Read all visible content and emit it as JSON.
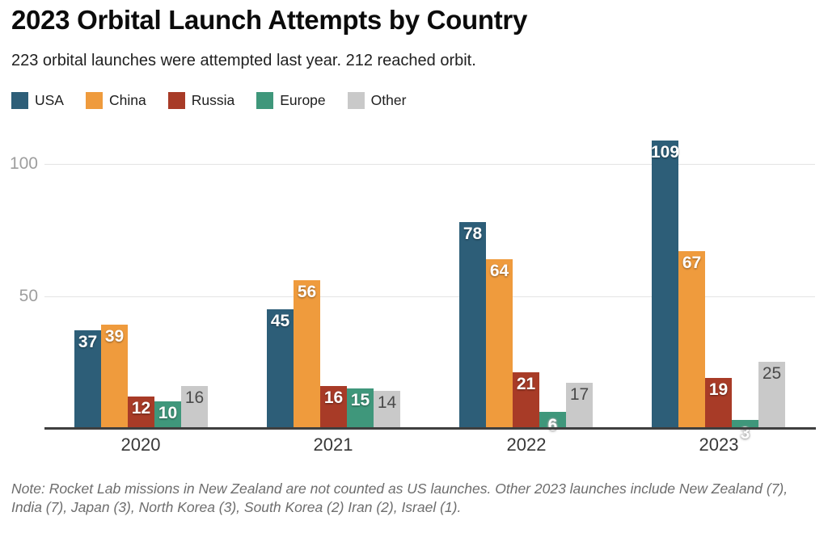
{
  "title": "2023 Orbital Launch Attempts by Country",
  "subtitle": "223 orbital launches were attempted last year. 212 reached orbit.",
  "note": "Note: Rocket Lab missions in New Zealand are not counted as US launches. Other 2023 launches include New Zealand (7), India (7), Japan (3), North Korea (3), South Korea (2) Iran (2), Israel (1).",
  "colors": {
    "usa": "#2d5e78",
    "china": "#ef9b3d",
    "russia": "#a83b27",
    "europe": "#3f977b",
    "other": "#c9c9c9",
    "axis_line": "#3f3f3f",
    "gridline": "#e4e4e4",
    "ytick_text": "#9e9e9e"
  },
  "chart_data": {
    "type": "bar",
    "title": "2023 Orbital Launch Attempts by Country",
    "subtitle": "223 orbital launches were attempted last year. 212 reached orbit.",
    "categories": [
      "2020",
      "2021",
      "2022",
      "2023"
    ],
    "series": [
      {
        "name": "USA",
        "color": "#2d5e78",
        "values": [
          37,
          45,
          78,
          109
        ]
      },
      {
        "name": "China",
        "color": "#ef9b3d",
        "values": [
          39,
          56,
          64,
          67
        ]
      },
      {
        "name": "Russia",
        "color": "#a83b27",
        "values": [
          12,
          16,
          21,
          19
        ]
      },
      {
        "name": "Europe",
        "color": "#3f977b",
        "values": [
          10,
          15,
          6,
          3
        ]
      },
      {
        "name": "Other",
        "color": "#c9c9c9",
        "values": [
          16,
          14,
          17,
          25
        ]
      }
    ],
    "xlabel": "",
    "ylabel": "",
    "yticks": [
      50,
      100
    ],
    "ylim": [
      0,
      113
    ],
    "grid": "horizontal",
    "legend_position": "top-left",
    "bar_labels": "shown on every bar"
  }
}
